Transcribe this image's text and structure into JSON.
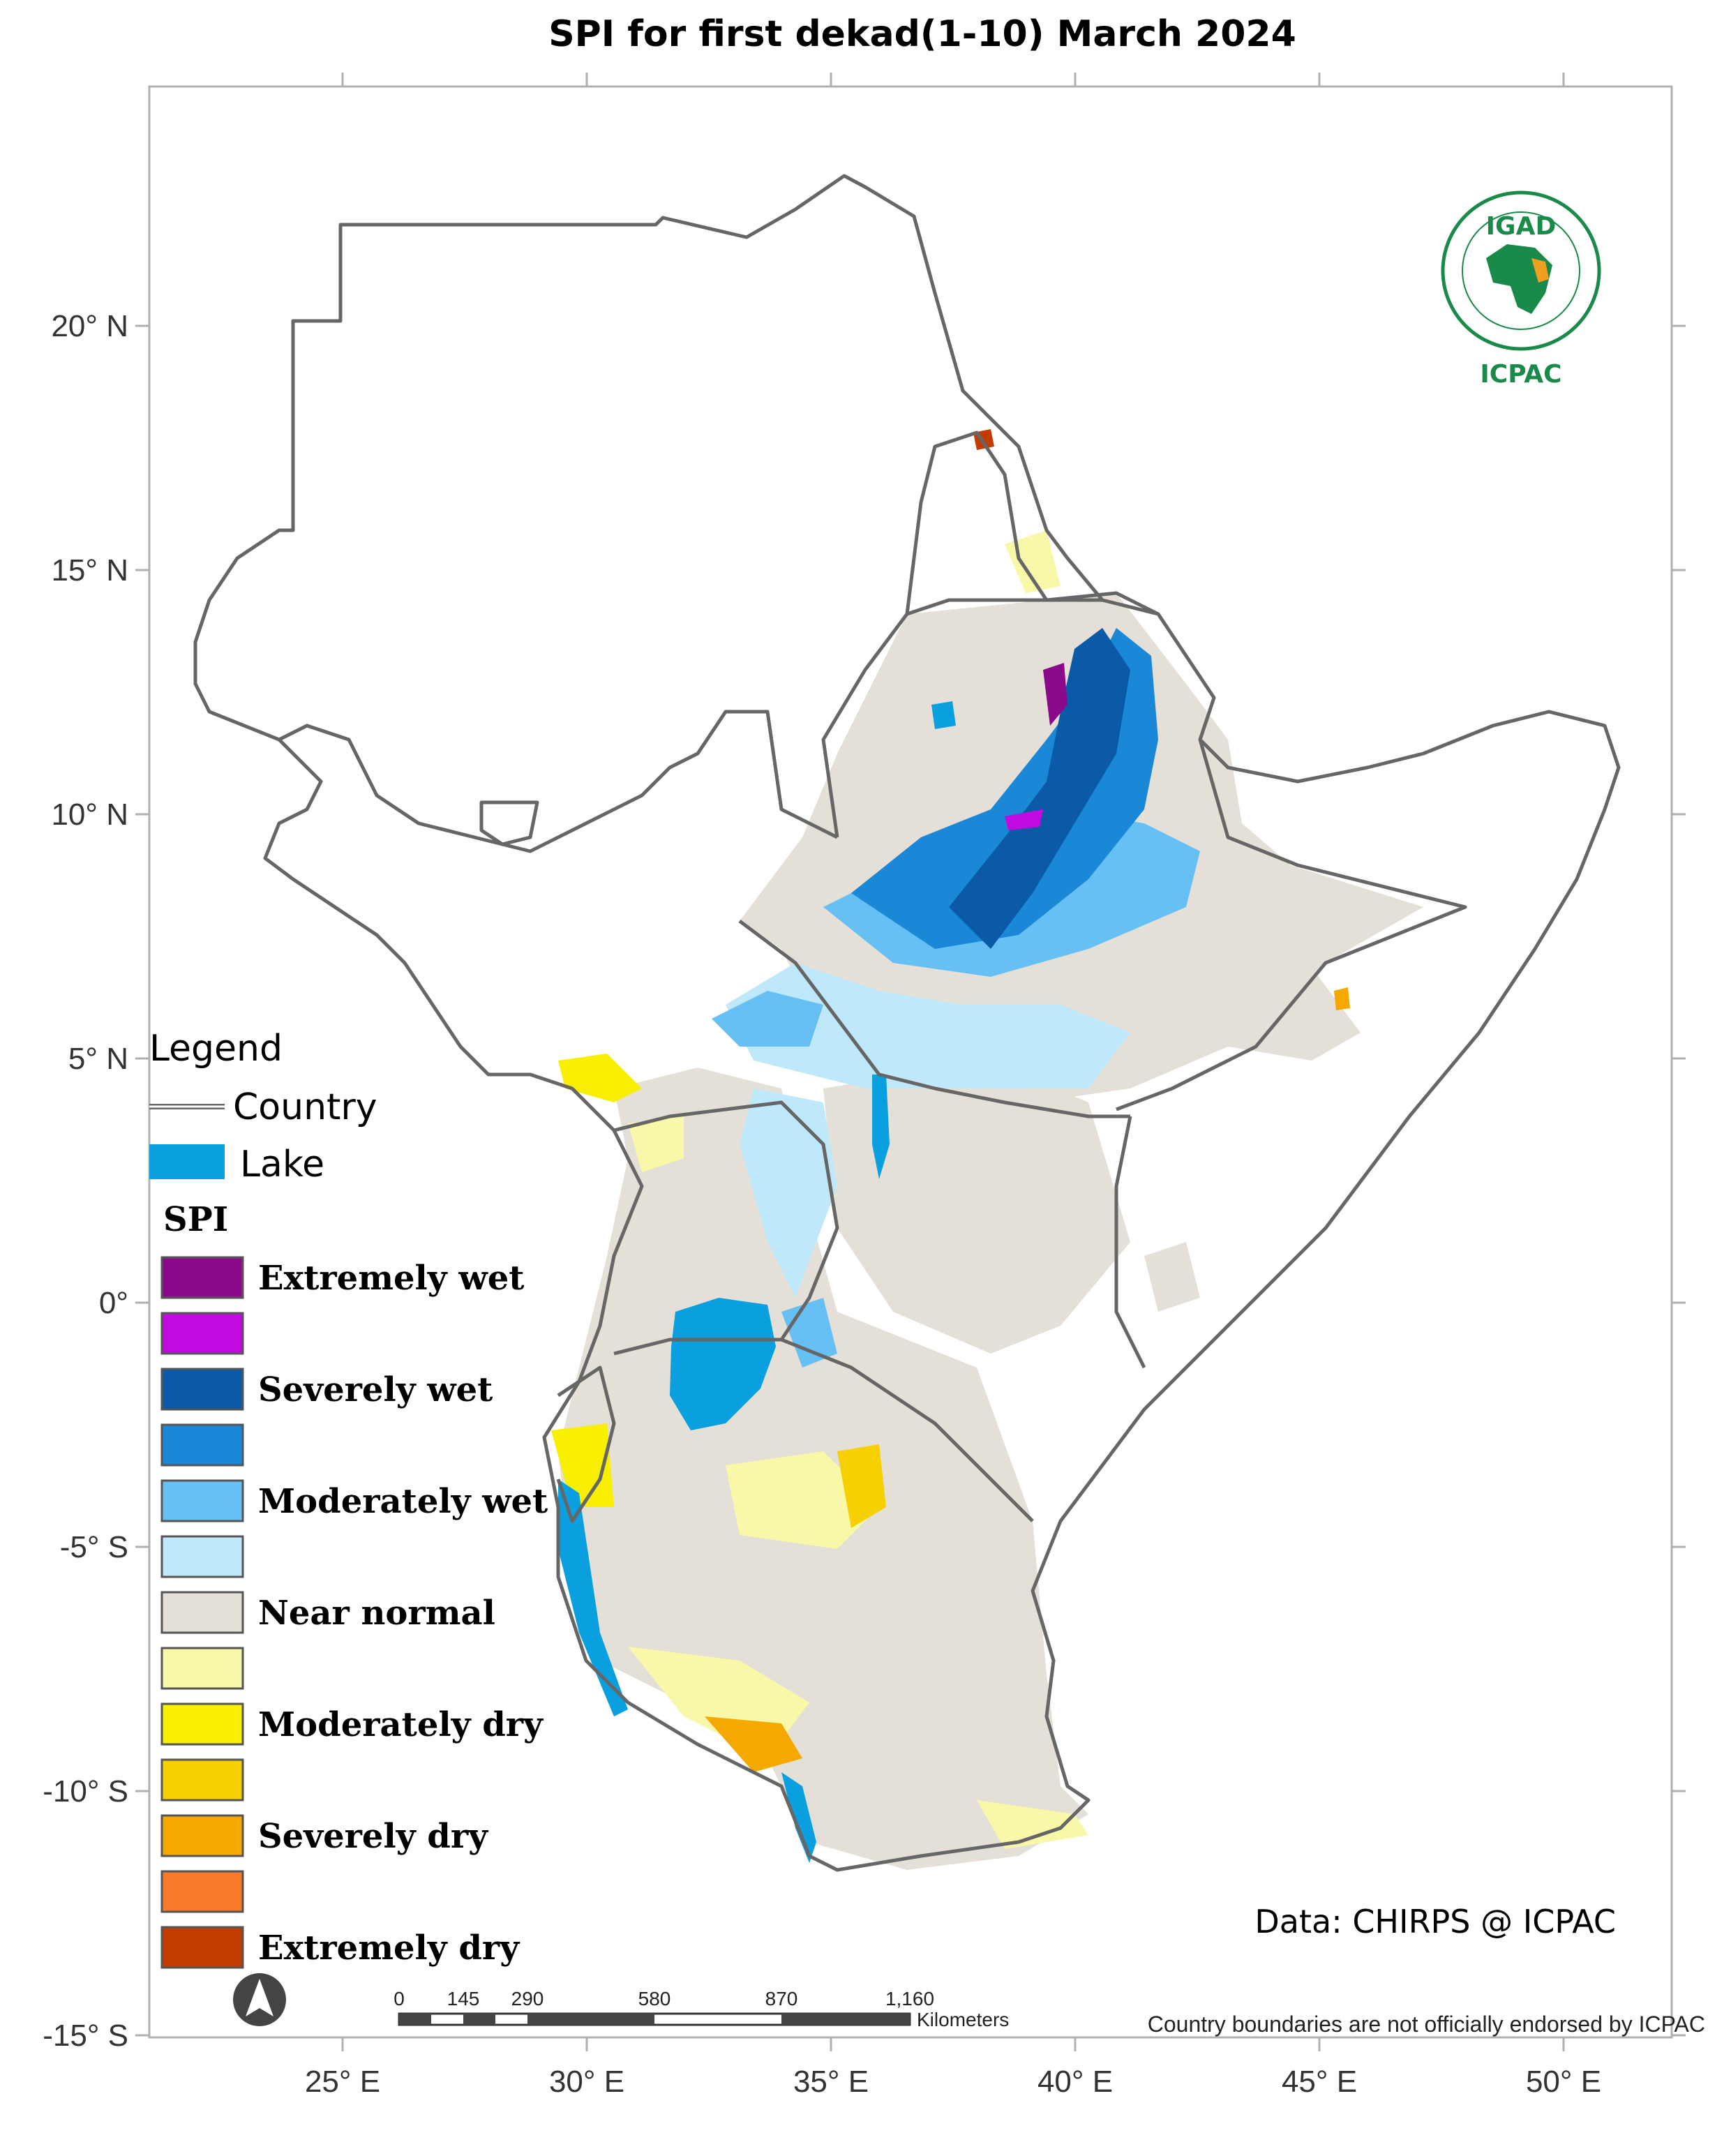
{
  "title": "SPI  for  first dekad(1-10) March 2024",
  "axes": {
    "x_ticks": [
      "25° E",
      "30° E",
      "35° E",
      "40° E",
      "45° E",
      "50° E"
    ],
    "y_ticks": [
      "20° N",
      "15° N",
      "10° N",
      "5° N",
      "0°",
      "-5° S",
      "-10° S",
      "-15° S"
    ]
  },
  "legend": {
    "heading": "Legend",
    "country_label": "Country",
    "lake_label": "Lake",
    "spi_heading": "SPI",
    "items": [
      {
        "label": "Extremely wet",
        "color": "#8b0a8b"
      },
      {
        "label": "",
        "color": "#c20ae0"
      },
      {
        "label": "Severely wet",
        "color": "#0a5aa8"
      },
      {
        "label": "",
        "color": "#1a88d6"
      },
      {
        "label": "Moderately wet",
        "color": "#66c0f4"
      },
      {
        "label": "",
        "color": "#bfe8fa"
      },
      {
        "label": "Near normal",
        "color": "#e4e0d7"
      },
      {
        "label": "",
        "color": "#f8f8a8"
      },
      {
        "label": "Moderately dry",
        "color": "#f8f000"
      },
      {
        "label": "",
        "color": "#f6d000"
      },
      {
        "label": "Severely dry",
        "color": "#f5a800"
      },
      {
        "label": "",
        "color": "#f87a2a"
      },
      {
        "label": "Extremely dry",
        "color": "#c23c00"
      }
    ]
  },
  "colors": {
    "lake": "#0aa0e0",
    "country_border": "#666666",
    "frame": "#b0b0b0",
    "logo_green": "#1a8a4a",
    "logo_orange": "#f0a020"
  },
  "logo": {
    "top": "IGAD",
    "bottom": "ICPAC",
    "icon": "igad-icpac-logo-icon"
  },
  "credit": "Data: CHIRPS @ ICPAC",
  "disclaimer": "Country boundaries are not officially endorsed by ICPAC",
  "scale_bar": {
    "labels": [
      "0",
      "145",
      "290",
      "580",
      "870",
      "1,160"
    ],
    "unit": "Kilometers"
  },
  "north_arrow": {
    "icon": "north-arrow-icon"
  }
}
